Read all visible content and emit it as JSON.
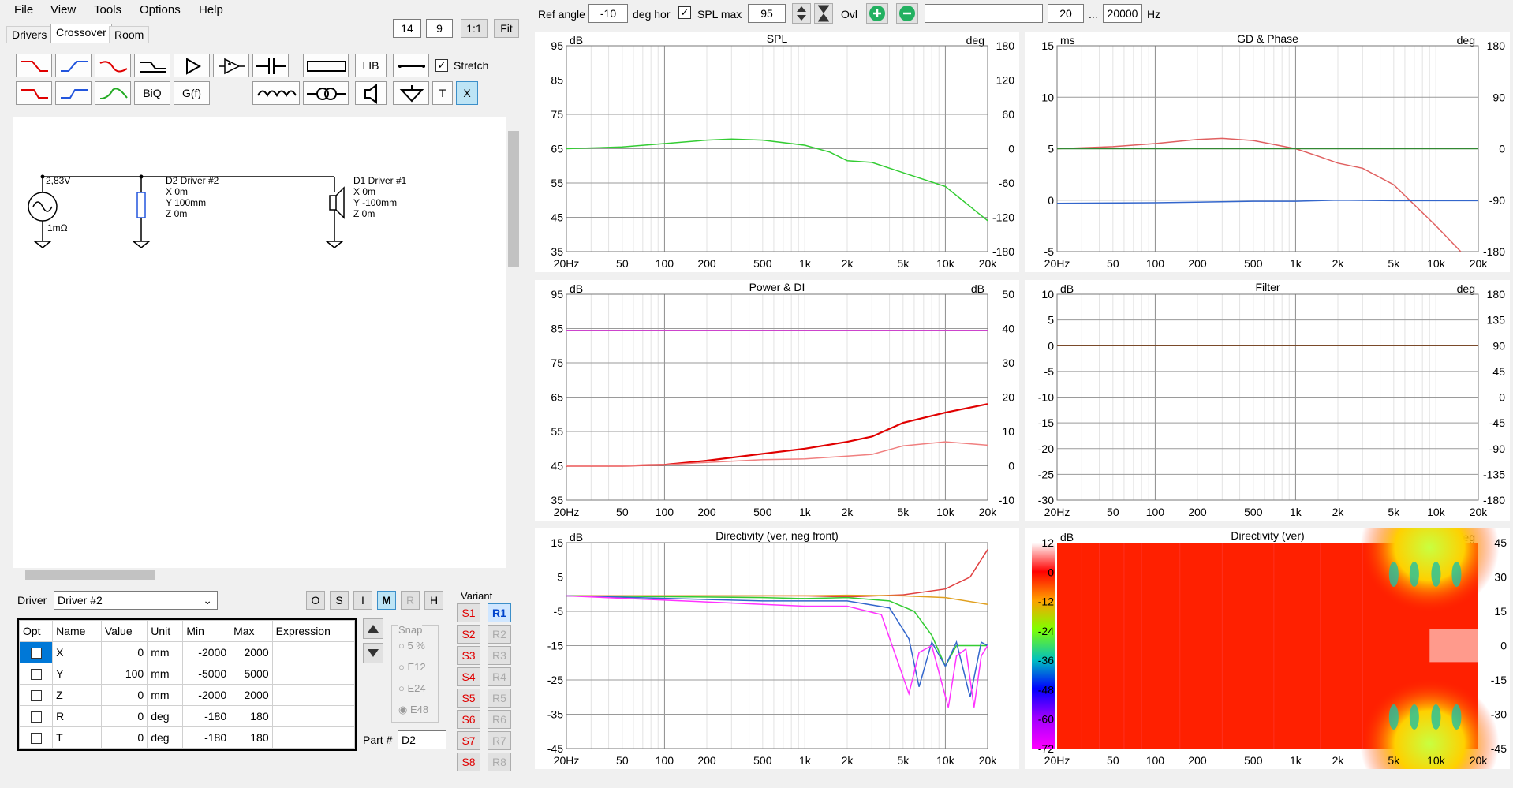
{
  "menu": [
    "File",
    "View",
    "Tools",
    "Options",
    "Help"
  ],
  "left_top": {
    "n1": "14",
    "n2": "9",
    "one_to_one": "1:1",
    "fit": "Fit"
  },
  "tabs": [
    "Drivers",
    "Crossover",
    "Room"
  ],
  "toolbar": {
    "lib": "LIB",
    "stretch": "Stretch",
    "biq": "BiQ",
    "gf": "G(f)",
    "t": "T",
    "x": "X"
  },
  "schematic": {
    "source_voltage": "2,83V",
    "source_res": "1mΩ",
    "d2": {
      "title": "D2 Driver #2",
      "x": "X 0m",
      "y": "Y 100mm",
      "z": "Z 0m"
    },
    "d1": {
      "title": "D1 Driver #1",
      "x": "X 0m",
      "y": "Y -100mm",
      "z": "Z 0m"
    }
  },
  "driver_label": "Driver",
  "driver_select": "Driver #2",
  "mode_buttons": [
    "O",
    "S",
    "I",
    "M",
    "R",
    "H"
  ],
  "table": {
    "headers": [
      "Opt",
      "Name",
      "Value",
      "Unit",
      "Min",
      "Max",
      "Expression"
    ],
    "rows": [
      {
        "name": "X",
        "value": "0",
        "unit": "mm",
        "min": "-2000",
        "max": "2000"
      },
      {
        "name": "Y",
        "value": "100",
        "unit": "mm",
        "min": "-5000",
        "max": "5000"
      },
      {
        "name": "Z",
        "value": "0",
        "unit": "mm",
        "min": "-2000",
        "max": "2000"
      },
      {
        "name": "R",
        "value": "0",
        "unit": "deg",
        "min": "-180",
        "max": "180"
      },
      {
        "name": "T",
        "value": "0",
        "unit": "deg",
        "min": "-180",
        "max": "180"
      }
    ]
  },
  "snap": {
    "title": "Snap",
    "options": [
      "5 %",
      "E12",
      "E24",
      "E48"
    ]
  },
  "part_label": "Part #",
  "part_value": "D2",
  "variant": {
    "title": "Variant",
    "s": [
      "S1",
      "S2",
      "S3",
      "S4",
      "S5",
      "S6",
      "S7",
      "S8"
    ],
    "r": [
      "R1",
      "R2",
      "R3",
      "R4",
      "R5",
      "R6",
      "R7",
      "R8"
    ]
  },
  "top": {
    "ref_angle_label": "Ref angle",
    "ref_angle": "-10",
    "deg_hor": "deg hor",
    "spl_max_label": "SPL max",
    "spl_max": "95",
    "ovl": "Ovl",
    "freq_from": "20",
    "dots": "...",
    "freq_to": "20000",
    "hz": "Hz"
  },
  "colors": {
    "red": "#e00000",
    "light_red": "#f08080",
    "green": "#33cc33",
    "blue": "#3366cc",
    "magenta": "#ff33ff",
    "orange": "#e0a020",
    "purple": "#cc44cc",
    "dark_green": "#338833"
  },
  "x_ticks": [
    "20Hz",
    "50",
    "100",
    "200",
    "500",
    "1k",
    "2k",
    "5k",
    "10k",
    "20k"
  ],
  "chart_data": [
    {
      "type": "line",
      "title": "SPL",
      "y_unit": "dB",
      "y2_unit": "deg",
      "ylim": [
        35,
        95
      ],
      "y_ticks": [
        "95",
        "85",
        "75",
        "65",
        "55",
        "45",
        "35"
      ],
      "y2_ticks": [
        "180",
        "120",
        "60",
        "0",
        "-60",
        "-120",
        "-180"
      ],
      "x_scale": "log",
      "series": [
        {
          "color": "#33cc33",
          "x": [
            20,
            50,
            100,
            200,
            300,
            500,
            1000,
            1500,
            2000,
            3000,
            5000,
            10000,
            20000
          ],
          "y": [
            65,
            65.5,
            66.5,
            67.5,
            67.8,
            67.5,
            66,
            64,
            61.5,
            61,
            58,
            54,
            44
          ]
        }
      ]
    },
    {
      "type": "line",
      "title": "GD & Phase",
      "y_unit": "ms",
      "y2_unit": "deg",
      "ylim": [
        -5,
        15
      ],
      "y_ticks": [
        "15",
        "10",
        "5",
        "0",
        "-5"
      ],
      "y2_ticks": [
        "180",
        "90",
        "0",
        "-90",
        "-180"
      ],
      "x_scale": "log",
      "series": [
        {
          "color": "#e06060",
          "x": [
            20,
            50,
            100,
            200,
            300,
            500,
            1000,
            1500,
            2000,
            3000,
            5000,
            10000,
            15000
          ],
          "y": [
            5,
            5.2,
            5.5,
            5.9,
            6,
            5.8,
            5,
            4.2,
            3.6,
            3.1,
            1.5,
            -2.5,
            -5
          ]
        },
        {
          "color": "#338833",
          "x": [
            20,
            20000
          ],
          "y": [
            5,
            5
          ]
        },
        {
          "color": "#3366cc",
          "x": [
            20,
            100,
            500,
            1000,
            2000,
            5000,
            20000
          ],
          "y": [
            -0.3,
            -0.25,
            -0.1,
            -0.1,
            0,
            -0.05,
            -0.05
          ]
        }
      ]
    },
    {
      "type": "line",
      "title": "Power & DI",
      "y_unit": "dB",
      "y2_unit": "dB",
      "ylim": [
        35,
        95
      ],
      "y_ticks": [
        "95",
        "85",
        "75",
        "65",
        "55",
        "45",
        "35"
      ],
      "y2_ticks": [
        "50",
        "40",
        "30",
        "20",
        "10",
        "0",
        "-10"
      ],
      "x_scale": "log",
      "series": [
        {
          "color": "#cc44cc",
          "x": [
            20,
            20000
          ],
          "y": [
            84.5,
            84.5
          ]
        },
        {
          "color": "#e00000",
          "x": [
            20,
            50,
            100,
            200,
            500,
            1000,
            2000,
            3000,
            5000,
            10000,
            20000
          ],
          "y": [
            45,
            45,
            45.3,
            46.5,
            48.5,
            50,
            52,
            53.5,
            57.5,
            60.5,
            63
          ]
        },
        {
          "color": "#f08080",
          "x": [
            20,
            50,
            100,
            200,
            500,
            1000,
            2000,
            3000,
            5000,
            10000,
            20000
          ],
          "y": [
            45,
            45,
            45.3,
            46,
            46.8,
            47,
            47.8,
            48.3,
            50.8,
            52,
            51
          ]
        }
      ]
    },
    {
      "type": "line",
      "title": "Filter",
      "y_unit": "dB",
      "y2_unit": "deg",
      "ylim": [
        -30,
        10
      ],
      "y_ticks": [
        "10",
        "5",
        "0",
        "-5",
        "-10",
        "-15",
        "-20",
        "-25",
        "-30"
      ],
      "y2_ticks": [
        "180",
        "135",
        "90",
        "45",
        "0",
        "-45",
        "-90",
        "-135",
        "-180"
      ],
      "x_scale": "log",
      "series": [
        {
          "color": "#7a4a2a",
          "x": [
            20,
            20000
          ],
          "y": [
            0,
            0
          ]
        }
      ]
    },
    {
      "type": "line",
      "title": "Directivity (ver, neg front)",
      "y_unit": "dB",
      "ylim": [
        -45,
        15
      ],
      "y_ticks": [
        "15",
        "5",
        "-5",
        "-15",
        "-25",
        "-35",
        "-45"
      ],
      "x_scale": "log",
      "series": [
        {
          "color": "#e04040",
          "x": [
            20,
            500,
            1000,
            2000,
            5000,
            10000,
            15000,
            20000
          ],
          "y": [
            -0.5,
            -0.5,
            -0.5,
            -0.8,
            -0.2,
            1.5,
            5,
            13
          ]
        },
        {
          "color": "#e0a020",
          "x": [
            20,
            500,
            1000,
            2000,
            5000,
            10000,
            20000
          ],
          "y": [
            -0.5,
            -0.5,
            -0.5,
            -0.3,
            -0.5,
            -1,
            -3
          ]
        },
        {
          "color": "#33cc33",
          "x": [
            20,
            500,
            1000,
            2000,
            4000,
            6000,
            8000,
            10000,
            12000,
            15000,
            20000
          ],
          "y": [
            -0.5,
            -1,
            -1.3,
            -1,
            -2,
            -5,
            -12,
            -21,
            -15,
            -15,
            -15
          ]
        },
        {
          "color": "#3366cc",
          "x": [
            20,
            500,
            1000,
            2000,
            4000,
            5500,
            6500,
            8000,
            10000,
            12000,
            15000,
            18000,
            20000
          ],
          "y": [
            -0.5,
            -2,
            -2,
            -2,
            -4,
            -13,
            -27,
            -14,
            -21,
            -14,
            -30,
            -14,
            -15
          ]
        },
        {
          "color": "#ff33ff",
          "x": [
            20,
            500,
            1000,
            2000,
            3500,
            5500,
            6500,
            8000,
            10500,
            12000,
            14000,
            16000,
            18000,
            20000
          ],
          "y": [
            -0.5,
            -3,
            -3.5,
            -3.5,
            -6,
            -29,
            -17,
            -15,
            -33,
            -18,
            -16,
            -33,
            -18,
            -15
          ]
        }
      ]
    },
    {
      "type": "heatmap",
      "title": "Directivity (ver)",
      "y_unit": "dB",
      "y2_unit": "deg",
      "colorbar_ticks": [
        "12",
        "0",
        "-12",
        "-24",
        "-36",
        "-48",
        "-60",
        "-72"
      ],
      "y2_ticks": [
        "45",
        "30",
        "15",
        "0",
        "-15",
        "-30",
        "-45"
      ],
      "x_scale": "log",
      "dominant_color": "#ff2000"
    }
  ]
}
